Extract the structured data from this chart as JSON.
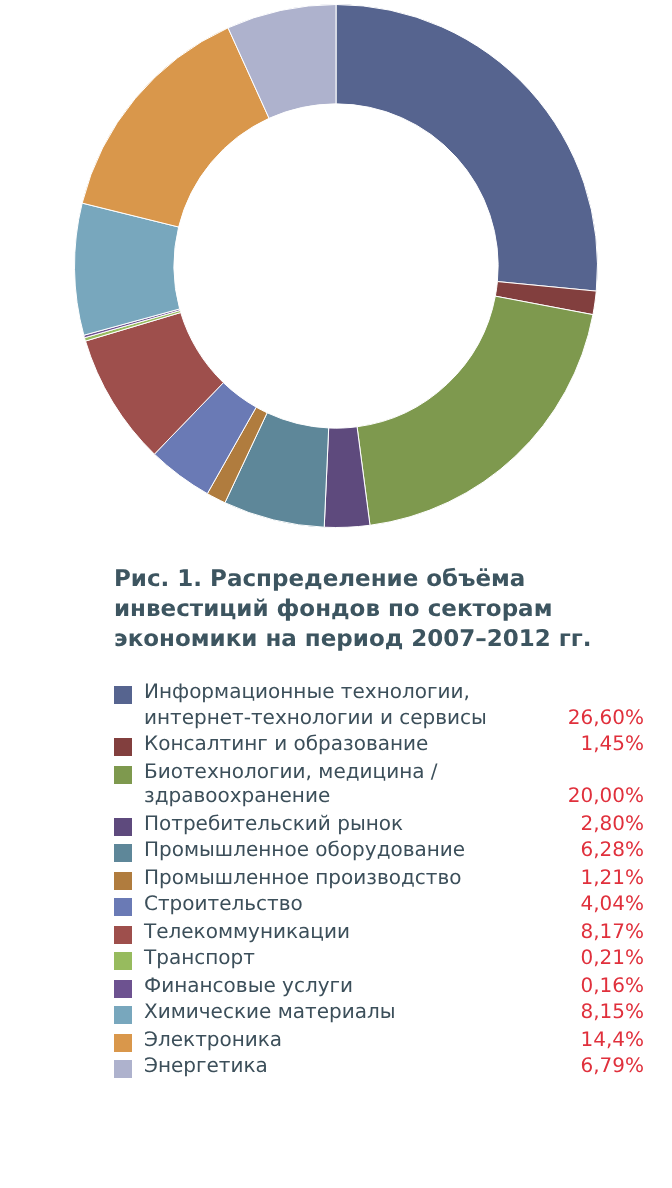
{
  "chart_data": {
    "type": "donut",
    "title": "Рис. 1. Распределение объёма инвестиций фондов по секторам экономики на период 2007–2012 гг.",
    "categories": [
      "Информационные технологии, интернет-технологии и сервисы",
      "Консалтинг и образование",
      "Биотехнологии, медицина / здравоохранение",
      "Потребительский рынок",
      "Промышленное оборудование",
      "Промышленное производство",
      "Строительство",
      "Телекоммуникации",
      "Транспорт",
      "Финансовые услуги",
      "Химические материалы",
      "Электроника",
      "Энергетика"
    ],
    "values": [
      26.6,
      1.45,
      20.0,
      2.8,
      6.28,
      1.21,
      4.04,
      8.17,
      0.21,
      0.16,
      8.15,
      14.4,
      6.79
    ],
    "value_labels": [
      "26,60%",
      "1,45%",
      "20,00%",
      "2,80%",
      "6,28%",
      "1,21%",
      "4,04%",
      "8,17%",
      "0,21%",
      "0,16%",
      "8,15%",
      "14,4%",
      "6,79%"
    ],
    "colors": [
      "#56648f",
      "#823f3e",
      "#7e994e",
      "#5e4a7d",
      "#5e8799",
      "#b07c3e",
      "#6a7ab5",
      "#9e4f4c",
      "#97bb5e",
      "#6d5290",
      "#78a7bd",
      "#d9974b",
      "#aeb2cd"
    ],
    "legend": "bottom"
  }
}
